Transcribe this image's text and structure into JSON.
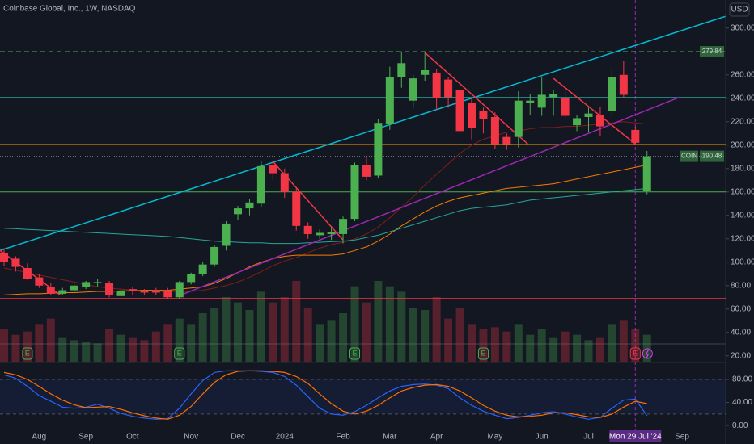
{
  "chart_data": {
    "type": "candlestick",
    "title": "Coinbase Global, Inc., 1W, NASDAQ",
    "currency": "USD",
    "symbol": "COIN",
    "categories": [
      null,
      null,
      null,
      "Aug",
      null,
      null,
      null,
      "Sep",
      null,
      null,
      null,
      "Oct",
      null,
      null,
      null,
      null,
      "Nov",
      null,
      null,
      null,
      "Dec",
      null,
      null,
      null,
      "2024",
      null,
      null,
      null,
      null,
      "Feb",
      null,
      null,
      null,
      "Mar",
      null,
      null,
      null,
      "Apr",
      null,
      null,
      null,
      null,
      "May",
      null,
      null,
      null,
      "Jun",
      null,
      null,
      null,
      "Jul",
      null,
      null,
      null,
      "Mon 29 Jul '24",
      null,
      null,
      null,
      "Sep",
      null,
      null,
      null
    ],
    "crosshair": 54,
    "open": [
      108,
      103,
      95,
      87,
      79,
      73,
      76,
      79,
      82,
      82,
      71,
      77,
      75,
      76,
      76,
      70,
      83,
      90,
      98,
      114,
      141,
      146,
      150,
      183,
      176,
      160,
      131,
      123,
      124,
      124,
      137,
      183,
      174,
      218,
      258,
      238,
      260,
      262,
      256,
      247,
      236,
      229,
      224,
      207,
      207,
      236,
      232,
      241,
      240,
      217,
      224,
      226,
      229,
      260,
      213,
      161,
      null,
      null,
      null,
      null,
      null,
      null
    ],
    "high": [
      112,
      105,
      99,
      90,
      82,
      78,
      81,
      84,
      86,
      84,
      76,
      79,
      77,
      78,
      78,
      84,
      91,
      100,
      115,
      135,
      148,
      154,
      186,
      187,
      180,
      163,
      134,
      128,
      130,
      139,
      185,
      190,
      222,
      267,
      280,
      260,
      279,
      265,
      258,
      250,
      240,
      232,
      228,
      210,
      246,
      244,
      258,
      247,
      246,
      226,
      232,
      233,
      265,
      272,
      216,
      195,
      null,
      null,
      null,
      null,
      null,
      null
    ],
    "low": [
      97,
      92,
      85,
      78,
      72,
      72,
      74,
      77,
      79,
      70,
      68,
      72,
      72,
      72,
      69,
      69,
      81,
      88,
      96,
      110,
      136,
      140,
      147,
      170,
      155,
      127,
      120,
      120,
      119,
      116,
      135,
      170,
      172,
      213,
      249,
      232,
      255,
      230,
      232,
      208,
      205,
      210,
      197,
      196,
      198,
      226,
      225,
      225,
      222,
      212,
      211,
      208,
      225,
      240,
      200,
      158,
      null,
      null,
      null,
      null,
      null,
      null
    ],
    "close": [
      100,
      96,
      86,
      80,
      73,
      76,
      80,
      83,
      83,
      72,
      75,
      75,
      74,
      74,
      70,
      83,
      90,
      98,
      113,
      133,
      146,
      151,
      182,
      176,
      160,
      131,
      124,
      125,
      126,
      137,
      183,
      173,
      219,
      258,
      270,
      257,
      264,
      240,
      241,
      212,
      215,
      222,
      201,
      201,
      238,
      238,
      243,
      244,
      225,
      223,
      227,
      216,
      258,
      243,
      202,
      190.48,
      null,
      null,
      null,
      null,
      null,
      null
    ],
    "volume": [
      30,
      25,
      28,
      35,
      40,
      22,
      20,
      18,
      17,
      30,
      25,
      22,
      20,
      28,
      35,
      40,
      35,
      45,
      50,
      60,
      55,
      48,
      65,
      55,
      60,
      75,
      50,
      35,
      38,
      45,
      70,
      55,
      75,
      70,
      65,
      50,
      48,
      60,
      40,
      50,
      35,
      30,
      32,
      28,
      35,
      25,
      30,
      22,
      28,
      25,
      20,
      22,
      35,
      38,
      30,
      25,
      null,
      null,
      null,
      null,
      null,
      null
    ],
    "up_color": "#4caf50",
    "down_color": "#f23645",
    "ma": [
      {
        "color": "#7f1d1d",
        "values": [
          95,
          93,
          91,
          89,
          87,
          85,
          83,
          81,
          79,
          78,
          77,
          76,
          76,
          75,
          75,
          75,
          75,
          76,
          78,
          80,
          83,
          87,
          92,
          97,
          101,
          104,
          108,
          112,
          115,
          117,
          120,
          124,
          130,
          138,
          147,
          156,
          166,
          175,
          184,
          193,
          200,
          205,
          208,
          211,
          212,
          214,
          215,
          215,
          216,
          216,
          217,
          218,
          219,
          220,
          219,
          218,
          null,
          null,
          null,
          null,
          null,
          null
        ]
      },
      {
        "color": "#f57c00",
        "values": [
          72,
          72.5,
          73,
          73,
          73.5,
          74,
          74,
          74.5,
          75,
          75,
          75.5,
          75.5,
          76,
          76,
          76,
          77,
          78,
          79,
          82,
          86,
          91,
          96,
          100,
          103,
          105,
          106,
          106,
          106,
          106,
          107,
          110,
          113,
          118,
          124,
          131,
          137,
          143,
          148,
          152,
          155,
          157,
          159,
          161,
          163,
          164,
          165,
          166,
          167,
          169,
          171,
          173,
          175,
          177,
          179,
          181,
          183,
          null,
          null,
          null,
          null,
          null,
          null
        ]
      },
      {
        "color": "#26a69a",
        "values": [
          129,
          128.5,
          128,
          127.5,
          127,
          126.5,
          126,
          125.5,
          125,
          124.5,
          124,
          123.5,
          123,
          122.5,
          122,
          121,
          120,
          119,
          118,
          117.5,
          117,
          116.5,
          116.5,
          116,
          116,
          116,
          116.5,
          117,
          117.5,
          118,
          119,
          121,
          123,
          126,
          129,
          132,
          135,
          138,
          141,
          144,
          146,
          147,
          148,
          149,
          151,
          153,
          154,
          155,
          156,
          157,
          158,
          159,
          160,
          161,
          162,
          163,
          null,
          null,
          null,
          null,
          null,
          null
        ]
      }
    ],
    "levels": [
      {
        "value": 279.84,
        "color": "#4caf50",
        "dashed": true
      },
      {
        "value": 240.7,
        "color": "#26a69a",
        "dashed": false
      },
      {
        "value": 200.5,
        "color": "#ff9800",
        "dashed": false
      },
      {
        "value": 160,
        "color": "#4caf50",
        "dashed": false
      },
      {
        "value": 69,
        "color": "#f23645",
        "dashed": false
      }
    ],
    "trendlines": [
      {
        "from": [
          -0.35,
          110
        ],
        "to": [
          61.7,
          310
        ],
        "color": "#00bcd4"
      },
      {
        "from": [
          14.9,
          71
        ],
        "to": [
          57.8,
          241
        ],
        "color": "#9c27b0"
      },
      {
        "from": [
          -0.35,
          110
        ],
        "to": [
          4.8,
          72
        ],
        "color": "#f23645"
      },
      {
        "from": [
          23,
          186
        ],
        "to": [
          29,
          119
        ],
        "color": "#f23645"
      },
      {
        "from": [
          36,
          279
        ],
        "to": [
          44.8,
          201
        ],
        "color": "#f23645"
      },
      {
        "from": [
          47,
          257
        ],
        "to": [
          54,
          201
        ],
        "color": "#f23645"
      }
    ],
    "events": [
      {
        "at": 2,
        "label": "E"
      },
      {
        "at": 15,
        "label": "E"
      },
      {
        "at": 30,
        "label": "E"
      },
      {
        "at": 41,
        "label": "E"
      },
      {
        "at": 54,
        "label": "E"
      }
    ],
    "ylim": [
      15,
      324
    ],
    "yticks": [
      {
        "value": 20,
        "label": "20.00"
      },
      {
        "value": 40,
        "label": "40.00"
      },
      {
        "value": 60,
        "label": "60.00"
      },
      {
        "value": 80,
        "label": "80.00"
      },
      {
        "value": 100,
        "label": "100.00"
      },
      {
        "value": 120,
        "label": "120.00"
      },
      {
        "value": 140,
        "label": "140.00"
      },
      {
        "value": 160,
        "label": "160.00"
      },
      {
        "value": 180,
        "label": "180.00"
      },
      {
        "value": 200,
        "label": "200.00"
      },
      {
        "value": 220,
        "label": "220.00"
      },
      {
        "value": 240,
        "label": "240.00"
      },
      {
        "value": 260,
        "label": "260.00"
      },
      {
        "value": 300,
        "label": "300.00"
      }
    ],
    "stoch": {
      "ylim": [
        -11,
        108
      ],
      "yticks": [
        {
          "value": 0,
          "label": "0.00"
        },
        {
          "value": 40,
          "label": "40.00"
        },
        {
          "value": 80,
          "label": "80.00"
        }
      ],
      "band": [
        20,
        80
      ],
      "series": [
        {
          "color": "#2962ff",
          "values": [
            88,
            82,
            68,
            52,
            42,
            32,
            30,
            32,
            37,
            30,
            21,
            16,
            13,
            11,
            12,
            30,
            55,
            78,
            92,
            95,
            95,
            95,
            94,
            92,
            85,
            70,
            50,
            30,
            20,
            18,
            24,
            35,
            48,
            60,
            68,
            71,
            72,
            70,
            64,
            48,
            35,
            25,
            18,
            12,
            14,
            18,
            22,
            24,
            20,
            15,
            11,
            14,
            30,
            44,
            46,
            17,
            null,
            null,
            null,
            null,
            null,
            null
          ]
        },
        {
          "color": "#ff6d00",
          "values": [
            92,
            88,
            80,
            68,
            55,
            44,
            36,
            31,
            32,
            33,
            28,
            22,
            17,
            13,
            11,
            18,
            33,
            55,
            75,
            88,
            94,
            95,
            95,
            94,
            92,
            85,
            73,
            55,
            38,
            25,
            20,
            25,
            35,
            48,
            60,
            66,
            70,
            71,
            68,
            60,
            48,
            35,
            25,
            18,
            15,
            16,
            18,
            22,
            22,
            19,
            15,
            14,
            20,
            32,
            42,
            38,
            null,
            null,
            null,
            null,
            null,
            null
          ]
        }
      ]
    }
  }
}
